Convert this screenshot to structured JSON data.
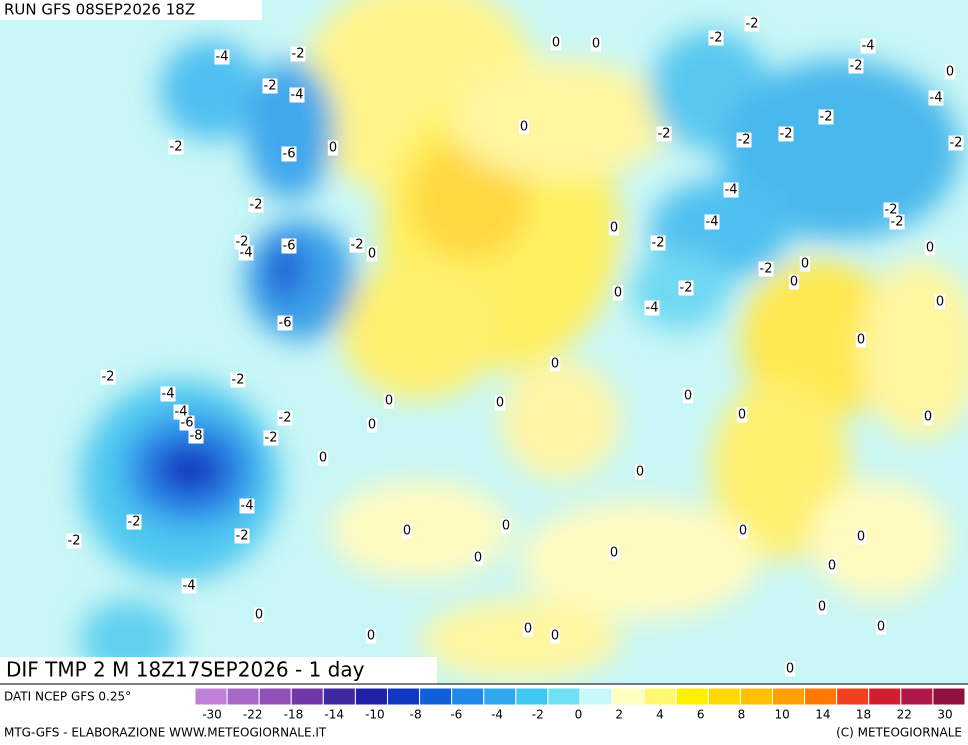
{
  "header": {
    "run": "RUN GFS 08SEP2026 18Z"
  },
  "title": "DIF TMP 2 M 18Z17SEP2026 - 1 day",
  "footer": {
    "source": "DATI NCEP GFS 0.25°",
    "credit": "MTG-GFS - ELABORAZIONE WWW.METEOGIORNALE.IT",
    "copyright": "(C) METEOGIORNALE"
  },
  "legend": {
    "colors": [
      "#c080d8",
      "#a868c8",
      "#9050b8",
      "#7038a8",
      "#4028a0",
      "#2020a8",
      "#1038c0",
      "#1060d8",
      "#2088e8",
      "#30a8f0",
      "#40c8f0",
      "#70e0f4",
      "#c8f8f8",
      "#ffffc0",
      "#fff870",
      "#fff000",
      "#ffd800",
      "#ffc000",
      "#ffa000",
      "#ff7800",
      "#f04020",
      "#d02030",
      "#b01848",
      "#901040"
    ],
    "ticks": [
      -30,
      -22,
      -18,
      -14,
      -10,
      -8,
      -6,
      -4,
      -2,
      0,
      2,
      4,
      6,
      8,
      10,
      14,
      18,
      22,
      30
    ]
  },
  "map": {
    "contour_labels": [
      -4,
      -2,
      -2,
      -4,
      -2,
      -6,
      0,
      -2,
      0,
      0,
      0,
      -2,
      -2,
      -4,
      -2,
      0,
      -4,
      -2,
      -2,
      -2,
      -2,
      -2,
      -4,
      -2,
      -2,
      -4,
      0,
      -2,
      -2,
      -4,
      -6,
      -2,
      0,
      0,
      -2,
      0,
      0,
      0,
      -2,
      -4,
      0,
      -6,
      0,
      0,
      -2,
      -2,
      -4,
      -4,
      -6,
      -8,
      0,
      0,
      0,
      -2,
      -2,
      0,
      0,
      0,
      0,
      0,
      -4,
      -2,
      -2,
      0,
      0,
      -2,
      0,
      0,
      0,
      0,
      -4,
      0,
      0,
      0,
      0,
      0,
      0,
      0,
      0
    ]
  }
}
